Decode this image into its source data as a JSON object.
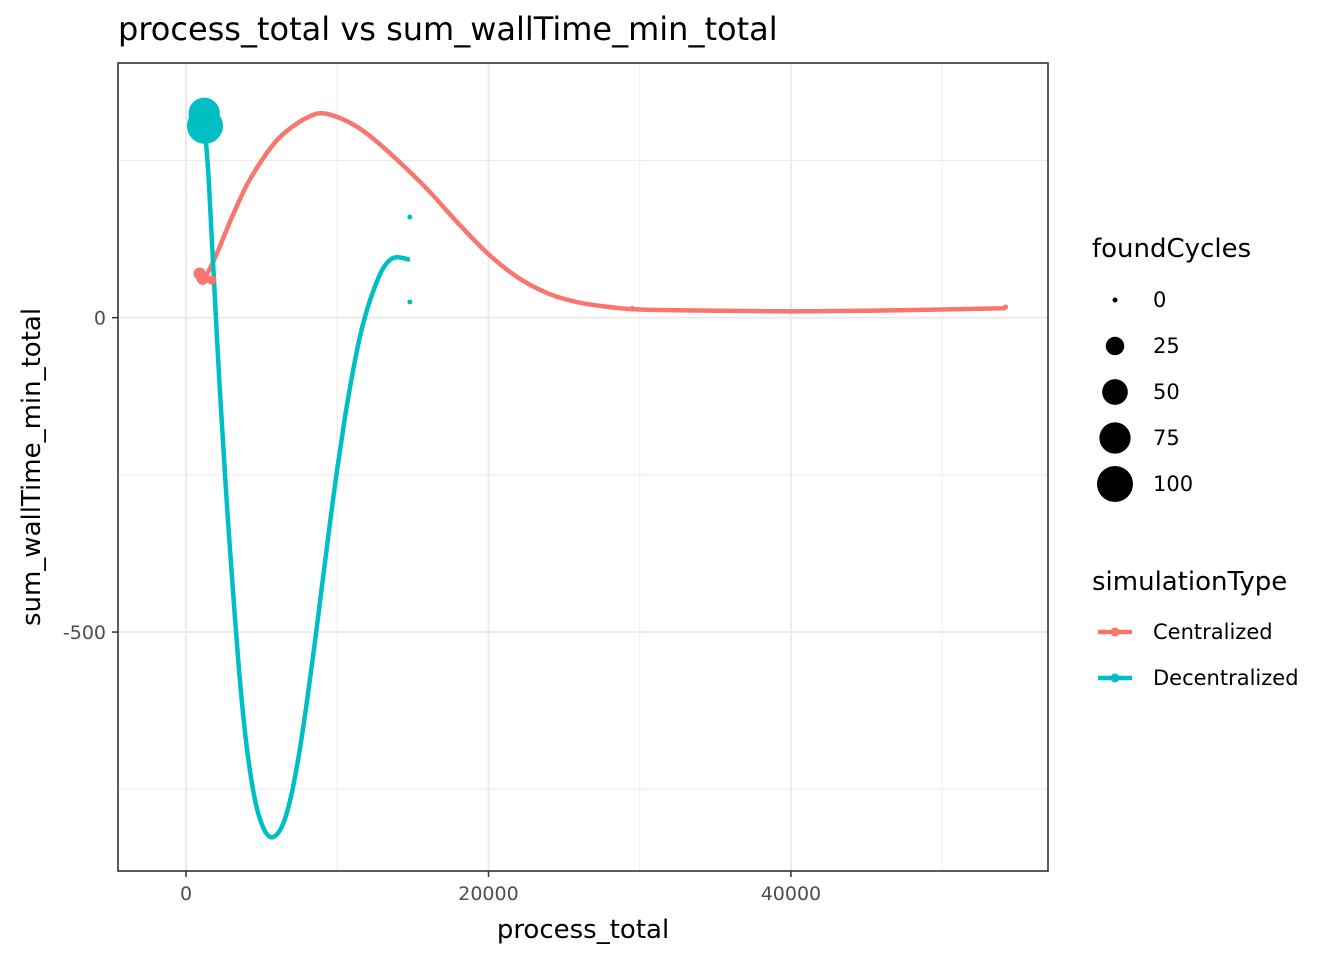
{
  "chart_data": {
    "type": "scatter",
    "title": "process_total  vs  sum_wallTime_min_total",
    "xlabel": "process_total",
    "ylabel": "sum_wallTime_min_total",
    "xlim": [
      -4500,
      57000
    ],
    "ylim": [
      -880,
      405
    ],
    "x_ticks": [
      0,
      20000,
      40000
    ],
    "x_tick_labels": [
      "0",
      "20000",
      "40000"
    ],
    "y_ticks": [
      0,
      -500
    ],
    "y_tick_labels": [
      "0",
      "-500"
    ],
    "grid": true,
    "legend_position": "right",
    "size_legend": {
      "title": "foundCycles",
      "values": [
        0,
        25,
        50,
        75,
        100
      ],
      "labels": [
        "0",
        "25",
        "50",
        "75",
        "100"
      ]
    },
    "color_legend": {
      "title": "simulationType",
      "labels": [
        "Centralized",
        "Decentralized"
      ]
    },
    "series": [
      {
        "name": "Centralized",
        "color": "#F8766D",
        "points": [
          {
            "x": 900,
            "y": 70,
            "size": 10
          },
          {
            "x": 1100,
            "y": 62,
            "size": 10
          },
          {
            "x": 1700,
            "y": 60,
            "size": 5
          },
          {
            "x": 29500,
            "y": 15,
            "size": 0
          },
          {
            "x": 54200,
            "y": 17,
            "size": 0
          }
        ],
        "smooth": [
          [
            1100,
            55
          ],
          [
            2000,
            100
          ],
          [
            3000,
            158
          ],
          [
            4000,
            210
          ],
          [
            5000,
            250
          ],
          [
            6000,
            282
          ],
          [
            7000,
            303
          ],
          [
            8000,
            318
          ],
          [
            9000,
            325
          ],
          [
            10500,
            314
          ],
          [
            12000,
            292
          ],
          [
            14000,
            250
          ],
          [
            16000,
            203
          ],
          [
            18000,
            150
          ],
          [
            20000,
            101
          ],
          [
            22000,
            63
          ],
          [
            24000,
            38
          ],
          [
            26000,
            24
          ],
          [
            28000,
            17
          ],
          [
            30000,
            13
          ],
          [
            35000,
            11
          ],
          [
            40000,
            10
          ],
          [
            45000,
            11
          ],
          [
            50000,
            13
          ],
          [
            54200,
            15
          ]
        ]
      },
      {
        "name": "Decentralized",
        "color": "#00BFC4",
        "points": [
          {
            "x": 1200,
            "y": 325,
            "size": 75
          },
          {
            "x": 1250,
            "y": 305,
            "size": 100
          },
          {
            "x": 14800,
            "y": 160,
            "size": 0
          },
          {
            "x": 14800,
            "y": 25,
            "size": 0
          }
        ],
        "smooth": [
          [
            1250,
            300
          ],
          [
            1500,
            220
          ],
          [
            1800,
            80
          ],
          [
            2200,
            -100
          ],
          [
            2600,
            -260
          ],
          [
            3000,
            -400
          ],
          [
            3500,
            -560
          ],
          [
            4000,
            -680
          ],
          [
            4500,
            -760
          ],
          [
            5000,
            -805
          ],
          [
            5500,
            -825
          ],
          [
            6000,
            -822
          ],
          [
            6500,
            -800
          ],
          [
            7000,
            -755
          ],
          [
            7500,
            -690
          ],
          [
            8000,
            -610
          ],
          [
            8500,
            -520
          ],
          [
            9000,
            -425
          ],
          [
            9500,
            -330
          ],
          [
            10000,
            -240
          ],
          [
            10500,
            -160
          ],
          [
            11000,
            -90
          ],
          [
            11500,
            -30
          ],
          [
            12000,
            15
          ],
          [
            12500,
            50
          ],
          [
            13000,
            77
          ],
          [
            13500,
            92
          ],
          [
            14000,
            96
          ],
          [
            14800,
            92
          ]
        ]
      }
    ]
  }
}
